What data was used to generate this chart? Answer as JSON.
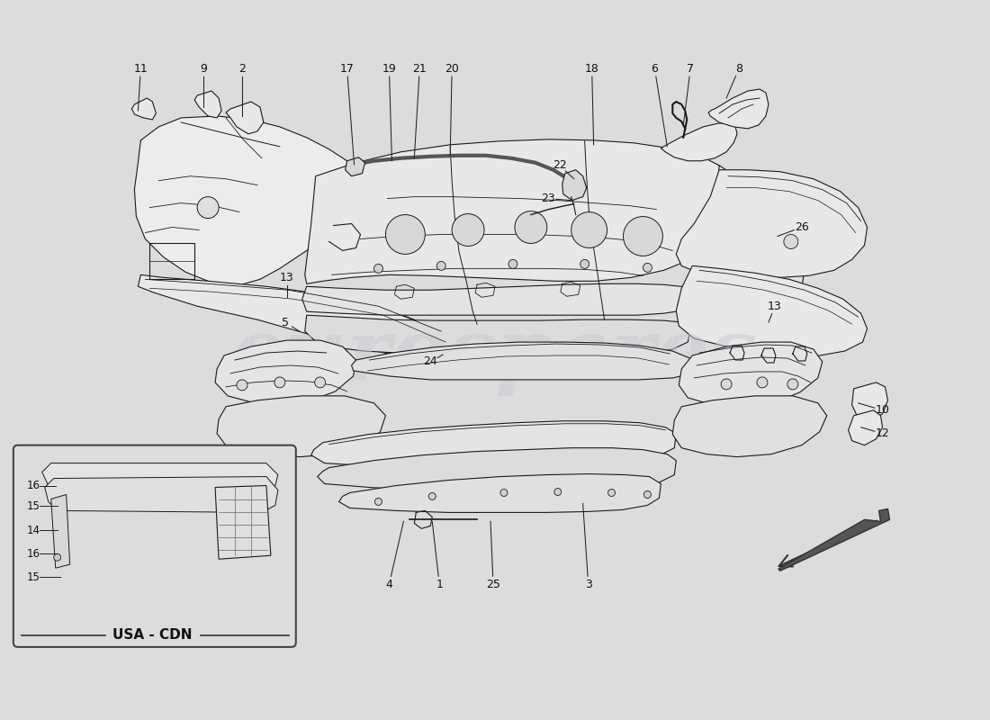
{
  "bg_color": "#dcdcdc",
  "line_color": "#1a1a1a",
  "fill_color": "#f0f0f0",
  "fill_color2": "#e8e8e8",
  "watermark_text": "eurospares",
  "watermark_color": "#c8ccd4",
  "watermark_alpha": 0.5,
  "labels": [
    [
      "11",
      155,
      75
    ],
    [
      "9",
      225,
      75
    ],
    [
      "2",
      268,
      75
    ],
    [
      "17",
      385,
      75
    ],
    [
      "19",
      432,
      75
    ],
    [
      "21",
      466,
      75
    ],
    [
      "20",
      502,
      75
    ],
    [
      "18",
      658,
      75
    ],
    [
      "6",
      728,
      75
    ],
    [
      "7",
      768,
      75
    ],
    [
      "8",
      822,
      75
    ],
    [
      "22",
      620,
      183
    ],
    [
      "23",
      608,
      220
    ],
    [
      "26",
      892,
      252
    ],
    [
      "13",
      318,
      308
    ],
    [
      "13",
      862,
      340
    ],
    [
      "5",
      316,
      358
    ],
    [
      "24",
      478,
      402
    ],
    [
      "10",
      982,
      456
    ],
    [
      "12",
      982,
      482
    ],
    [
      "1",
      488,
      650
    ],
    [
      "4",
      432,
      650
    ],
    [
      "25",
      548,
      650
    ],
    [
      "3",
      654,
      650
    ]
  ],
  "inset_labels": [
    [
      "16",
      38,
      543
    ],
    [
      "15",
      38,
      568
    ],
    [
      "14",
      38,
      596
    ],
    [
      "16",
      38,
      621
    ],
    [
      "15",
      38,
      647
    ]
  ]
}
